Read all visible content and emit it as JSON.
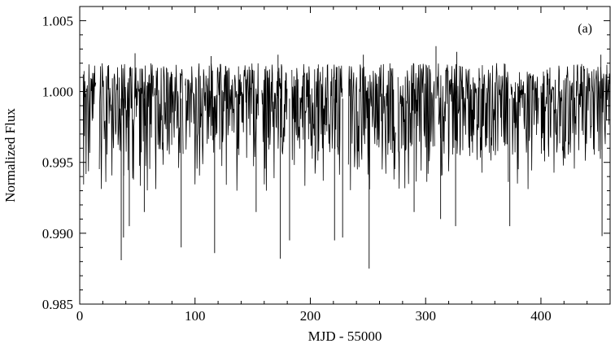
{
  "chart_data": {
    "type": "line",
    "title": "",
    "panel_label": "(a)",
    "xlabel": "MJD - 55000",
    "ylabel": "Normalized Flux",
    "xlim": [
      0,
      460
    ],
    "ylim": [
      0.985,
      1.006
    ],
    "x_ticks": [
      {
        "value": 0,
        "label": "0"
      },
      {
        "value": 100,
        "label": "100"
      },
      {
        "value": 200,
        "label": "200"
      },
      {
        "value": 300,
        "label": "300"
      },
      {
        "value": 400,
        "label": "400"
      }
    ],
    "y_ticks": [
      {
        "value": 0.985,
        "label": "0.985"
      },
      {
        "value": 0.99,
        "label": "0.990"
      },
      {
        "value": 0.995,
        "label": "0.995"
      },
      {
        "value": 1.0,
        "label": "1.000"
      },
      {
        "value": 1.005,
        "label": "1.005"
      }
    ],
    "grid": false,
    "series": [
      {
        "color": "#000000",
        "segments": [
          [
            3,
            14
          ],
          [
            17,
            64
          ],
          [
            65,
            90
          ],
          [
            91.5,
            155
          ],
          [
            158,
            180
          ],
          [
            184,
            228
          ],
          [
            233,
            274
          ],
          [
            276,
            308
          ],
          [
            310,
            372
          ],
          [
            374,
            398
          ],
          [
            400,
            460
          ]
        ],
        "baseline": 0.9995,
        "upper_envelope": 1.002,
        "lower_envelope": 0.9955,
        "deep_dips": [
          {
            "x": 36,
            "y": 0.9881
          },
          {
            "x": 38,
            "y": 0.9897
          },
          {
            "x": 43,
            "y": 0.9905
          },
          {
            "x": 56,
            "y": 0.9915
          },
          {
            "x": 88,
            "y": 0.989
          },
          {
            "x": 117,
            "y": 0.9886
          },
          {
            "x": 153,
            "y": 0.9915
          },
          {
            "x": 174,
            "y": 0.9882
          },
          {
            "x": 182,
            "y": 0.9895
          },
          {
            "x": 221,
            "y": 0.9895
          },
          {
            "x": 228,
            "y": 0.9897
          },
          {
            "x": 251,
            "y": 0.9875
          },
          {
            "x": 290,
            "y": 0.9915
          },
          {
            "x": 313,
            "y": 0.991
          },
          {
            "x": 326,
            "y": 0.9905
          },
          {
            "x": 373,
            "y": 0.9905
          },
          {
            "x": 453,
            "y": 0.9898
          }
        ],
        "peaks": [
          {
            "x": 48,
            "y": 1.0027
          },
          {
            "x": 114,
            "y": 1.0025
          },
          {
            "x": 172,
            "y": 1.0026
          },
          {
            "x": 246,
            "y": 1.0026
          },
          {
            "x": 309,
            "y": 1.0032
          },
          {
            "x": 327,
            "y": 1.0028
          },
          {
            "x": 452,
            "y": 1.0026
          }
        ]
      }
    ]
  }
}
